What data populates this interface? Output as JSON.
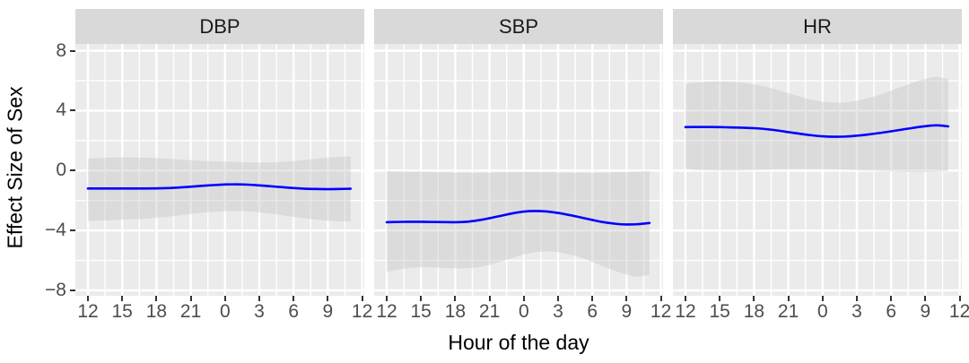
{
  "y_axis": {
    "title": "Effect Size of Sex",
    "tick_labels": [
      "8",
      "4",
      "0",
      "−4",
      "−8"
    ],
    "tick_values": [
      8,
      4,
      0,
      -4,
      -8
    ]
  },
  "x_axis": {
    "title": "Hour of the day",
    "tick_labels": [
      "12",
      "15",
      "18",
      "21",
      "0",
      "3",
      "6",
      "9",
      "12"
    ],
    "tick_hours": [
      12,
      15,
      18,
      21,
      24,
      27,
      30,
      33,
      36
    ]
  },
  "colors": {
    "panel_background": "#EBEBEB",
    "strip_background": "#D9D9D9",
    "gridline": "#FFFFFF",
    "ribbon_fill": "rgba(197,197,197,0.42)",
    "line": "#0000FF",
    "tick_text": "#4D4D4D",
    "strip_text": "#1A1A1A",
    "axis_title_text": "#000000",
    "tick_mark": "#333333"
  },
  "chart_data": {
    "type": "line",
    "title": "",
    "xlabel": "Hour of the day",
    "ylabel": "Effect Size of Sex",
    "x_domain_hours": [
      10.9,
      36.3
    ],
    "y_domain": [
      -8.4,
      8.5
    ],
    "y_major_breaks": [
      8,
      4,
      0,
      -4,
      -8
    ],
    "y_minor_breaks": [
      6,
      2,
      -2,
      -6
    ],
    "grid": "on",
    "legend": "none",
    "x_hours": [
      12,
      13,
      14,
      15,
      16,
      17,
      18,
      19,
      20,
      21,
      22,
      23,
      24,
      25,
      26,
      27,
      28,
      29,
      30,
      31,
      32,
      33,
      34,
      35
    ],
    "x_hour_labels": [
      "12",
      "13",
      "14",
      "15",
      "16",
      "17",
      "18",
      "19",
      "20",
      "21",
      "22",
      "23",
      "0",
      "1",
      "2",
      "3",
      "4",
      "5",
      "6",
      "7",
      "8",
      "9",
      "10",
      "11"
    ],
    "facets": [
      {
        "label": "DBP",
        "mean": [
          -1.2,
          -1.2,
          -1.2,
          -1.2,
          -1.2,
          -1.2,
          -1.19,
          -1.17,
          -1.13,
          -1.08,
          -1.02,
          -0.97,
          -0.93,
          -0.92,
          -0.94,
          -0.99,
          -1.05,
          -1.11,
          -1.17,
          -1.21,
          -1.23,
          -1.24,
          -1.23,
          -1.21
        ],
        "upper": [
          0.8,
          0.84,
          0.87,
          0.88,
          0.88,
          0.86,
          0.83,
          0.79,
          0.74,
          0.69,
          0.65,
          0.62,
          0.6,
          0.57,
          0.55,
          0.54,
          0.55,
          0.58,
          0.64,
          0.71,
          0.79,
          0.86,
          0.92,
          0.95
        ],
        "lower": [
          -3.36,
          -3.34,
          -3.31,
          -3.28,
          -3.25,
          -3.21,
          -3.15,
          -3.08,
          -2.99,
          -2.9,
          -2.81,
          -2.75,
          -2.71,
          -2.7,
          -2.73,
          -2.79,
          -2.88,
          -2.98,
          -3.09,
          -3.19,
          -3.28,
          -3.35,
          -3.39,
          -3.41
        ]
      },
      {
        "label": "SBP",
        "mean": [
          -3.45,
          -3.43,
          -3.42,
          -3.42,
          -3.43,
          -3.44,
          -3.45,
          -3.42,
          -3.32,
          -3.18,
          -3.02,
          -2.86,
          -2.74,
          -2.7,
          -2.73,
          -2.83,
          -2.97,
          -3.13,
          -3.3,
          -3.45,
          -3.55,
          -3.6,
          -3.58,
          -3.5
        ],
        "upper": [
          -0.05,
          -0.06,
          -0.07,
          -0.08,
          -0.1,
          -0.12,
          -0.14,
          -0.15,
          -0.15,
          -0.14,
          -0.12,
          -0.11,
          -0.1,
          -0.1,
          -0.11,
          -0.13,
          -0.14,
          -0.15,
          -0.15,
          -0.14,
          -0.12,
          -0.1,
          -0.07,
          -0.05
        ],
        "lower": [
          -6.8,
          -6.62,
          -6.5,
          -6.45,
          -6.46,
          -6.5,
          -6.53,
          -6.52,
          -6.45,
          -6.3,
          -6.08,
          -5.83,
          -5.6,
          -5.45,
          -5.4,
          -5.46,
          -5.6,
          -5.82,
          -6.1,
          -6.4,
          -6.7,
          -6.95,
          -7.08,
          -6.95
        ]
      },
      {
        "label": "HR",
        "mean": [
          2.9,
          2.91,
          2.91,
          2.9,
          2.88,
          2.86,
          2.83,
          2.77,
          2.68,
          2.57,
          2.46,
          2.36,
          2.29,
          2.26,
          2.27,
          2.33,
          2.41,
          2.51,
          2.62,
          2.74,
          2.86,
          2.96,
          3.02,
          2.95
        ],
        "upper": [
          5.8,
          5.88,
          5.93,
          5.95,
          5.93,
          5.87,
          5.76,
          5.6,
          5.4,
          5.17,
          4.94,
          4.74,
          4.6,
          4.53,
          4.55,
          4.66,
          4.83,
          5.06,
          5.33,
          5.61,
          5.89,
          6.12,
          6.26,
          6.1
        ],
        "lower": [
          0.1,
          0.05,
          0.02,
          0.0,
          0.0,
          0.01,
          0.03,
          0.05,
          0.07,
          0.09,
          0.1,
          0.1,
          0.09,
          0.07,
          0.05,
          0.03,
          0.0,
          -0.02,
          -0.05,
          -0.08,
          -0.1,
          -0.1,
          -0.07,
          -0.03
        ]
      }
    ]
  }
}
